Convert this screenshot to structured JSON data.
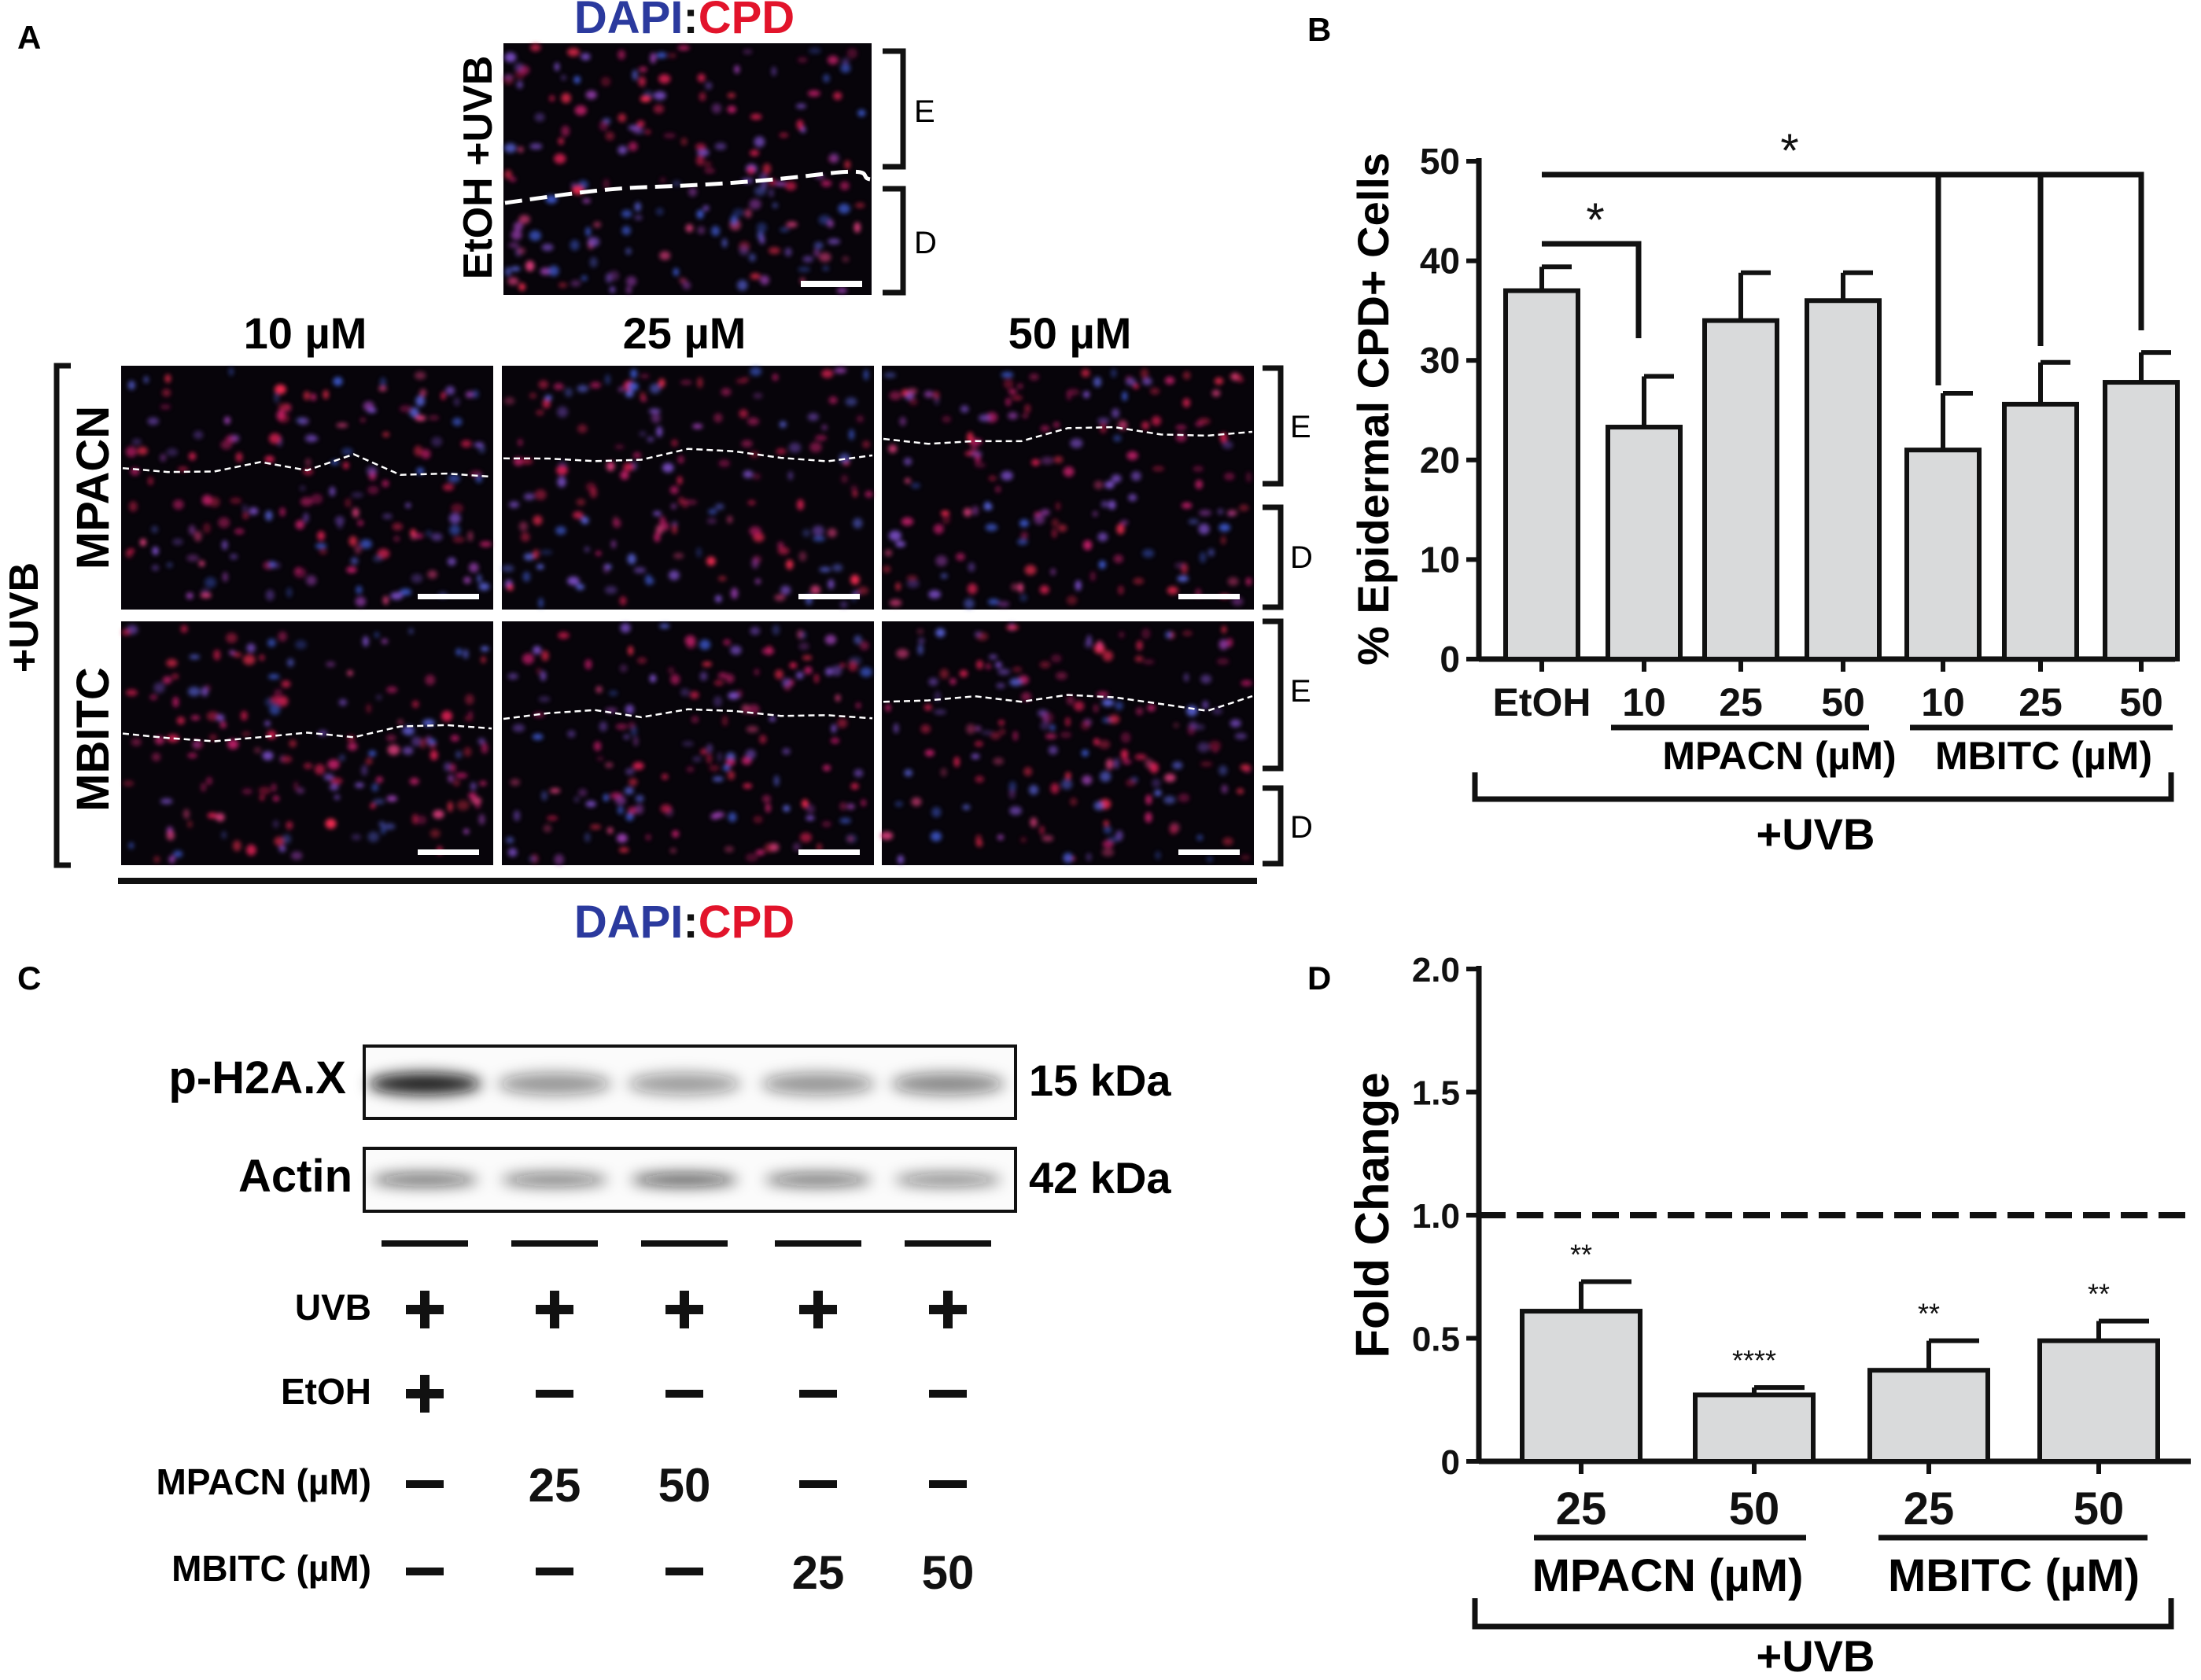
{
  "colors": {
    "dapi": "#2b3a9e",
    "cpd": "#e2142b",
    "bar_fill": "#d9dadb",
    "ink": "#111111"
  },
  "panel_a": {
    "letter": "A",
    "dapi_word": "DAPI",
    "colon": ":",
    "cpd_word": "CPD",
    "control_label": "EtOH +UVB",
    "epidermis": "E",
    "dermis": "D",
    "group_label": "+UVB",
    "rows": [
      "MPACN",
      "MBITC"
    ],
    "cols": [
      "10 µM",
      "25 µM",
      "50 µM"
    ]
  },
  "panel_b": {
    "letter": "B",
    "sig_star": "*",
    "group1_label": "MPACN (µM)",
    "group2_label": "MBITC (µM)",
    "uvb_label": "+UVB"
  },
  "panel_c": {
    "letter": "C",
    "blot_labels": [
      "p-H2A.X",
      "Actin"
    ],
    "kda_labels": [
      "15 kDa",
      "42 kDa"
    ],
    "row_labels": [
      "UVB",
      "EtOH",
      "MPACN (µM)",
      "MBITC (µM)"
    ],
    "matrix": [
      [
        "+",
        "+",
        "+",
        "+",
        "+"
      ],
      [
        "+",
        "−",
        "−",
        "−",
        "−"
      ],
      [
        "−",
        "25",
        "50",
        "−",
        "−"
      ],
      [
        "−",
        "−",
        "−",
        "25",
        "50"
      ]
    ]
  },
  "panel_d": {
    "letter": "D",
    "group1_label": "MPACN (µM)",
    "group2_label": "MBITC (µM)",
    "uvb_label": "+UVB"
  },
  "chart_data": [
    {
      "id": "B",
      "type": "bar",
      "ylabel": "% Epidermal CPD+ Cells",
      "xlabel": "",
      "ylim": [
        0,
        50
      ],
      "yticks": [
        0,
        10,
        20,
        30,
        40,
        50
      ],
      "categories": [
        "EtOH",
        "10",
        "25",
        "50",
        "10",
        "25",
        "50"
      ],
      "values": [
        37,
        23.3,
        34,
        36,
        21,
        25.6,
        27.8
      ],
      "errors": [
        2.4,
        5.1,
        4.8,
        2.8,
        5.7,
        4.2,
        3.0
      ],
      "groups": [
        {
          "label": "MPACN (µM)",
          "members": [
            1,
            2,
            3
          ]
        },
        {
          "label": "MBITC (µM)",
          "members": [
            4,
            5,
            6
          ]
        }
      ],
      "significance": [
        {
          "from": 0,
          "to": [
            1
          ],
          "label": "*"
        },
        {
          "from": 0,
          "to": [
            4,
            5,
            6
          ],
          "label": "*"
        }
      ],
      "annotation": "+UVB"
    },
    {
      "id": "D",
      "type": "bar",
      "ylabel": "Fold Change",
      "xlabel": "",
      "ylim": [
        0,
        2.0
      ],
      "yticks": [
        "0",
        "0.5",
        "1.0",
        "1.5",
        "2.0"
      ],
      "categories": [
        "25",
        "50",
        "25",
        "50"
      ],
      "values": [
        0.61,
        0.27,
        0.37,
        0.49
      ],
      "errors": [
        0.12,
        0.03,
        0.12,
        0.08
      ],
      "stars": [
        "**",
        "****",
        "**",
        "**"
      ],
      "reference_line": 1.0,
      "groups": [
        {
          "label": "MPACN (µM)",
          "members": [
            0,
            1
          ]
        },
        {
          "label": "MBITC (µM)",
          "members": [
            2,
            3
          ]
        }
      ],
      "annotation": "+UVB"
    }
  ]
}
